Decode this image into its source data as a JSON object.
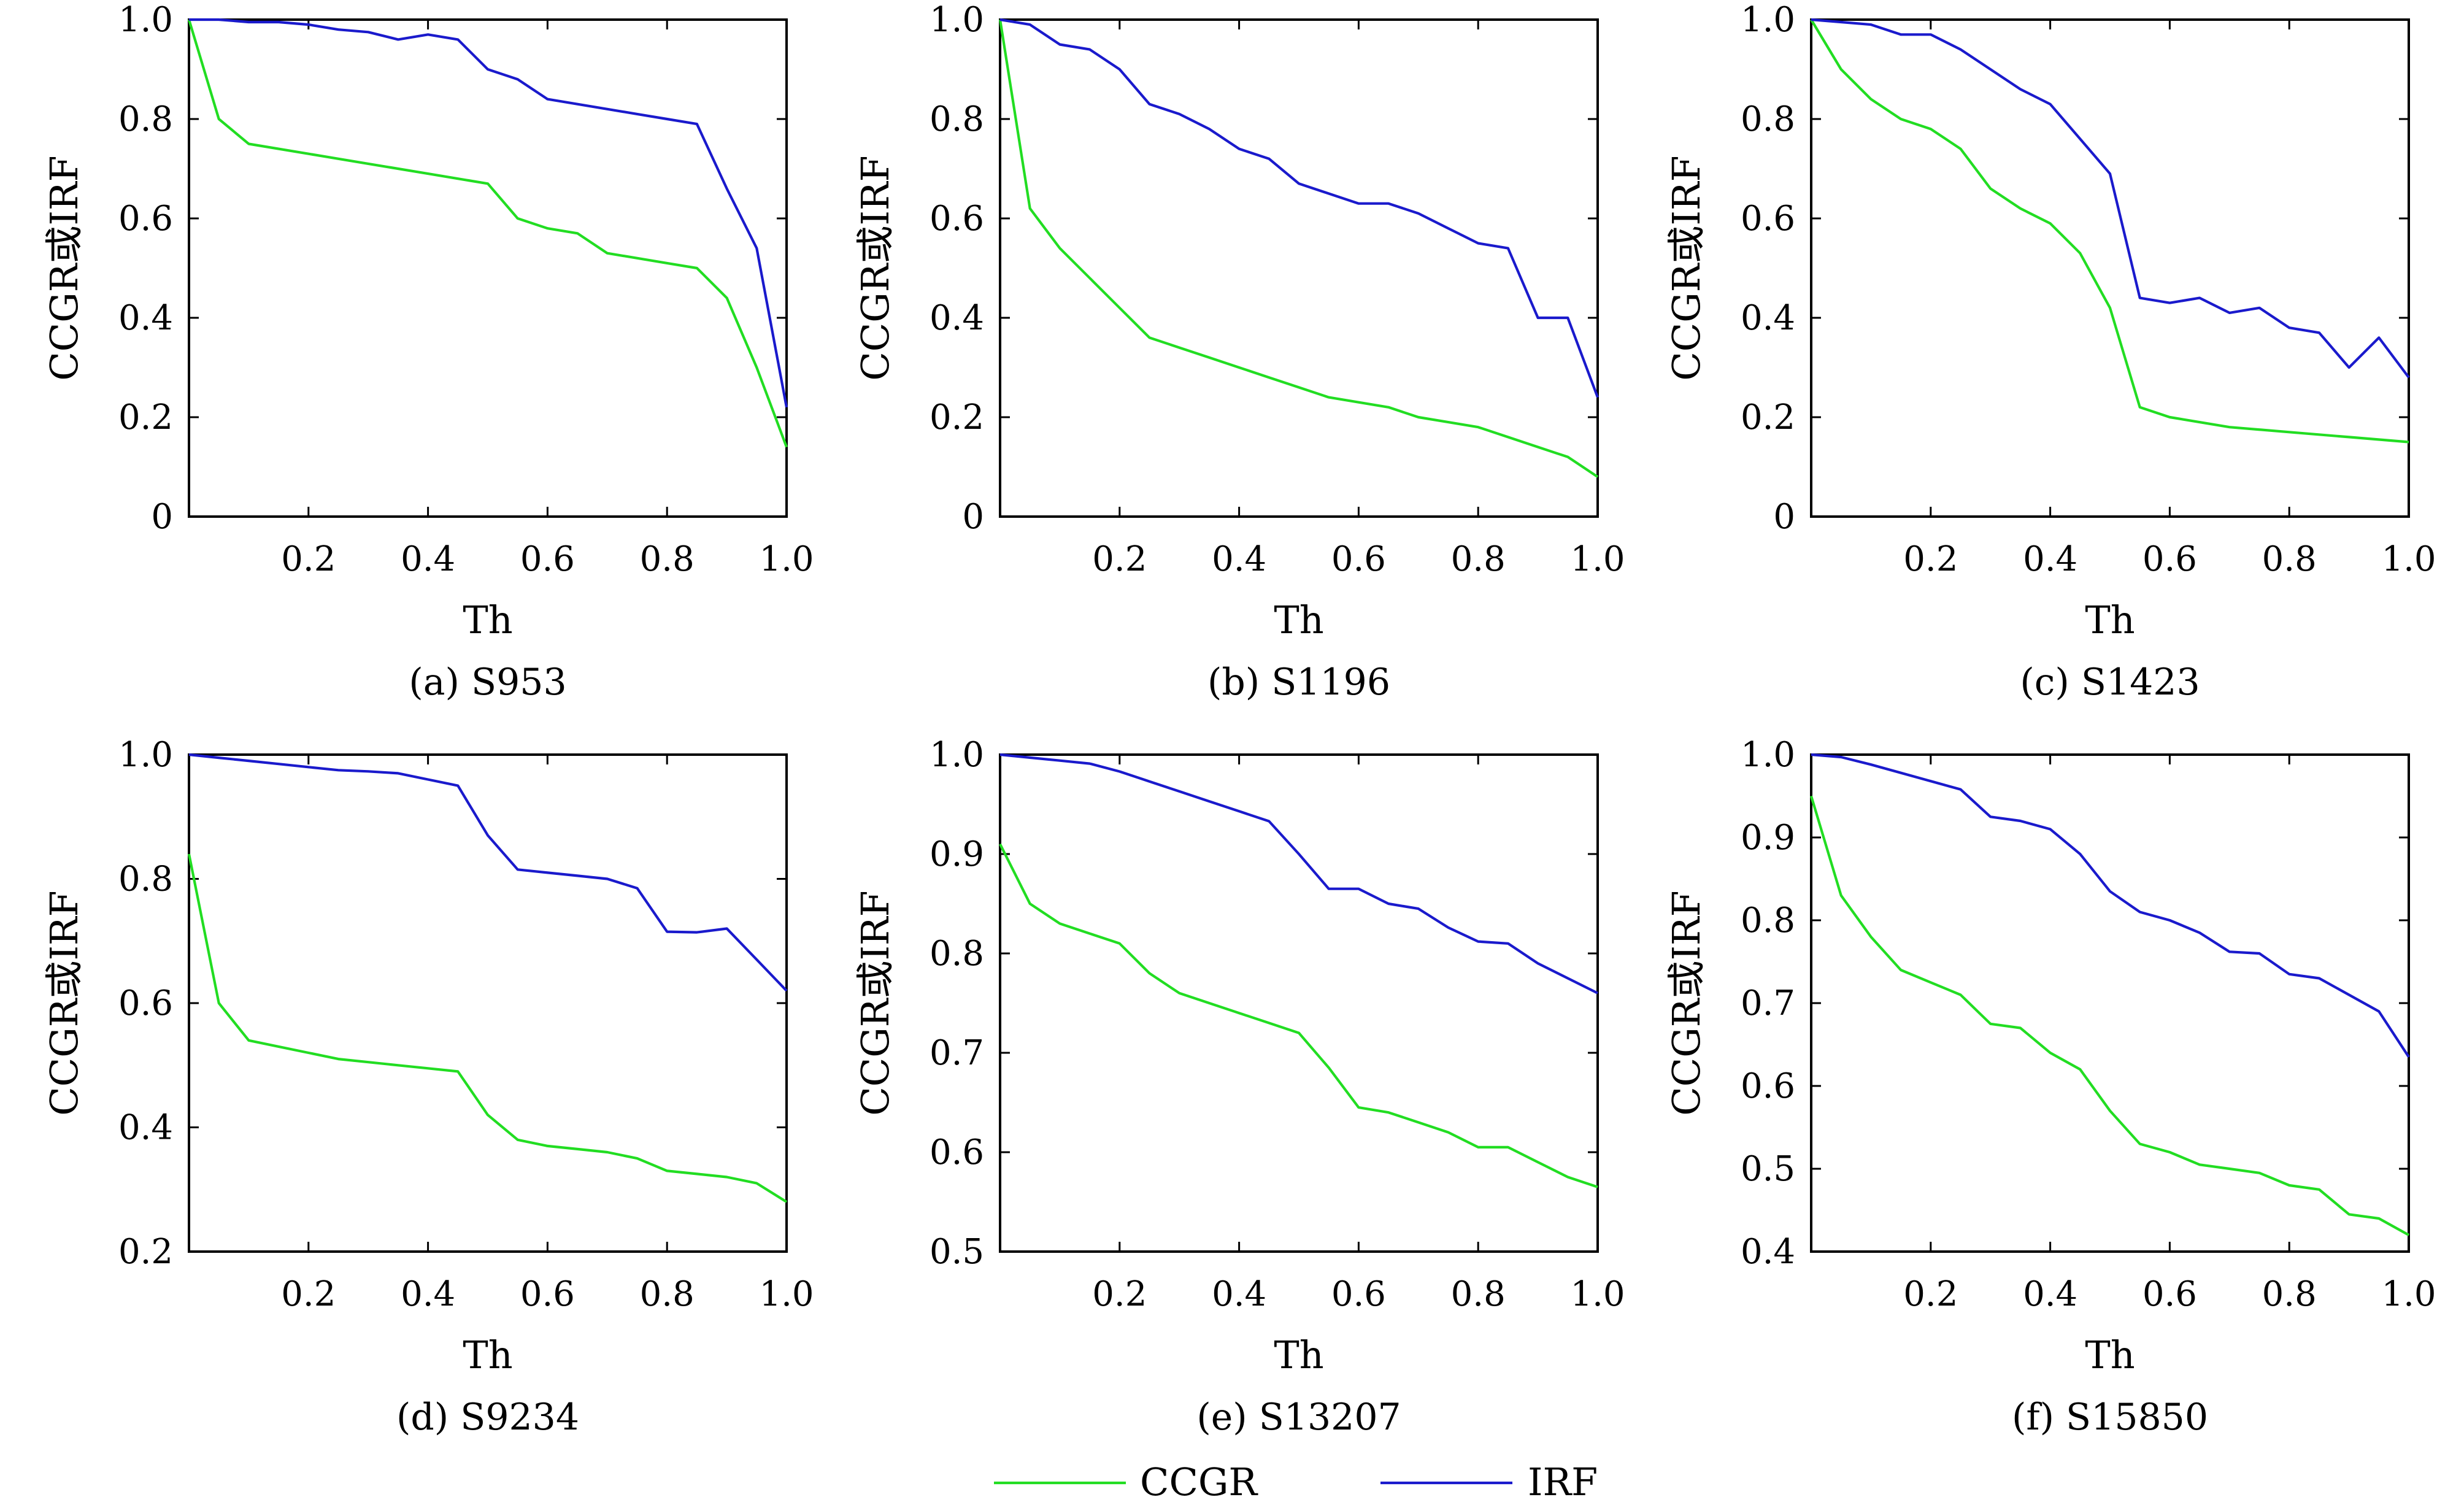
{
  "legend": {
    "items": [
      {
        "label": "CCGR",
        "color": "#22dd22"
      },
      {
        "label": "IRF",
        "color": "#1a1acc"
      }
    ]
  },
  "chart_data": [
    {
      "type": "line",
      "caption": "(a) S953",
      "xlabel": "Th",
      "ylabel": "CCGR或IRF",
      "xlim": [
        0,
        1.0
      ],
      "ylim": [
        0,
        1.0
      ],
      "xticks": [
        "0.2",
        "0.4",
        "0.6",
        "0.8",
        "1.0"
      ],
      "yticks": [
        "0",
        "0.2",
        "0.4",
        "0.6",
        "0.8",
        "1.0"
      ],
      "series": [
        {
          "name": "CCGR",
          "color": "#22dd22",
          "x": [
            0,
            0.05,
            0.1,
            0.2,
            0.3,
            0.4,
            0.5,
            0.55,
            0.6,
            0.65,
            0.7,
            0.8,
            0.85,
            0.9,
            0.95,
            1.0
          ],
          "y": [
            1.0,
            0.8,
            0.75,
            0.73,
            0.71,
            0.69,
            0.67,
            0.6,
            0.58,
            0.57,
            0.53,
            0.51,
            0.5,
            0.44,
            0.3,
            0.14
          ]
        },
        {
          "name": "IRF",
          "color": "#1a1acc",
          "x": [
            0,
            0.05,
            0.1,
            0.15,
            0.2,
            0.25,
            0.3,
            0.35,
            0.4,
            0.45,
            0.5,
            0.55,
            0.6,
            0.65,
            0.7,
            0.75,
            0.8,
            0.85,
            0.9,
            0.95,
            1.0
          ],
          "y": [
            1.0,
            1.0,
            0.995,
            0.995,
            0.99,
            0.98,
            0.975,
            0.96,
            0.97,
            0.96,
            0.9,
            0.88,
            0.84,
            0.83,
            0.82,
            0.81,
            0.8,
            0.79,
            0.66,
            0.54,
            0.22
          ]
        }
      ]
    },
    {
      "type": "line",
      "caption": "(b) S1196",
      "xlabel": "Th",
      "ylabel": "CCGR或IRF",
      "xlim": [
        0,
        1.0
      ],
      "ylim": [
        0,
        1.0
      ],
      "xticks": [
        "0.2",
        "0.4",
        "0.6",
        "0.8",
        "1.0"
      ],
      "yticks": [
        "0",
        "0.2",
        "0.4",
        "0.6",
        "0.8",
        "1.0"
      ],
      "series": [
        {
          "name": "CCGR",
          "color": "#22dd22",
          "x": [
            0,
            0.05,
            0.1,
            0.15,
            0.2,
            0.25,
            0.3,
            0.35,
            0.4,
            0.45,
            0.5,
            0.55,
            0.6,
            0.65,
            0.7,
            0.75,
            0.8,
            0.85,
            0.9,
            0.95,
            1.0
          ],
          "y": [
            1.0,
            0.62,
            0.54,
            0.48,
            0.42,
            0.36,
            0.34,
            0.32,
            0.3,
            0.28,
            0.26,
            0.24,
            0.23,
            0.22,
            0.2,
            0.19,
            0.18,
            0.16,
            0.14,
            0.12,
            0.08
          ]
        },
        {
          "name": "IRF",
          "color": "#1a1acc",
          "x": [
            0,
            0.05,
            0.1,
            0.15,
            0.2,
            0.25,
            0.3,
            0.35,
            0.4,
            0.45,
            0.5,
            0.55,
            0.6,
            0.65,
            0.7,
            0.75,
            0.8,
            0.85,
            0.9,
            0.95,
            1.0
          ],
          "y": [
            1.0,
            0.99,
            0.95,
            0.94,
            0.9,
            0.83,
            0.81,
            0.78,
            0.74,
            0.72,
            0.67,
            0.65,
            0.63,
            0.63,
            0.61,
            0.58,
            0.55,
            0.54,
            0.4,
            0.4,
            0.24
          ]
        }
      ]
    },
    {
      "type": "line",
      "caption": "(c) S1423",
      "xlabel": "Th",
      "ylabel": "CCGR或IRF",
      "xlim": [
        0,
        1.0
      ],
      "ylim": [
        0,
        1.0
      ],
      "xticks": [
        "0.2",
        "0.4",
        "0.6",
        "0.8",
        "1.0"
      ],
      "yticks": [
        "0",
        "0.2",
        "0.4",
        "0.6",
        "0.8",
        "1.0"
      ],
      "series": [
        {
          "name": "CCGR",
          "color": "#22dd22",
          "x": [
            0,
            0.05,
            0.1,
            0.15,
            0.2,
            0.25,
            0.3,
            0.35,
            0.4,
            0.45,
            0.5,
            0.55,
            0.6,
            0.7,
            0.8,
            0.9,
            1.0
          ],
          "y": [
            1.0,
            0.9,
            0.84,
            0.8,
            0.78,
            0.74,
            0.66,
            0.62,
            0.59,
            0.53,
            0.42,
            0.22,
            0.2,
            0.18,
            0.17,
            0.16,
            0.15
          ]
        },
        {
          "name": "IRF",
          "color": "#1a1acc",
          "x": [
            0,
            0.05,
            0.1,
            0.15,
            0.2,
            0.25,
            0.3,
            0.35,
            0.4,
            0.45,
            0.5,
            0.55,
            0.6,
            0.65,
            0.7,
            0.75,
            0.8,
            0.85,
            0.9,
            0.95,
            1.0
          ],
          "y": [
            1.0,
            0.995,
            0.99,
            0.97,
            0.97,
            0.94,
            0.9,
            0.86,
            0.83,
            0.76,
            0.69,
            0.44,
            0.43,
            0.44,
            0.41,
            0.42,
            0.38,
            0.37,
            0.3,
            0.36,
            0.28
          ]
        }
      ]
    },
    {
      "type": "line",
      "caption": "(d) S9234",
      "xlabel": "Th",
      "ylabel": "CCGR或IRF",
      "xlim": [
        0,
        1.0
      ],
      "ylim": [
        0.2,
        1.0
      ],
      "xticks": [
        "0.2",
        "0.4",
        "0.6",
        "0.8",
        "1.0"
      ],
      "yticks": [
        "0.2",
        "0.4",
        "0.6",
        "0.8",
        "1.0"
      ],
      "series": [
        {
          "name": "CCGR",
          "color": "#22dd22",
          "x": [
            0,
            0.05,
            0.1,
            0.15,
            0.2,
            0.25,
            0.3,
            0.35,
            0.4,
            0.45,
            0.5,
            0.55,
            0.6,
            0.65,
            0.7,
            0.75,
            0.8,
            0.85,
            0.9,
            0.95,
            1.0
          ],
          "y": [
            0.84,
            0.6,
            0.54,
            0.53,
            0.52,
            0.51,
            0.505,
            0.5,
            0.495,
            0.49,
            0.42,
            0.38,
            0.37,
            0.365,
            0.36,
            0.35,
            0.33,
            0.325,
            0.32,
            0.31,
            0.28
          ]
        },
        {
          "name": "IRF",
          "color": "#1a1acc",
          "x": [
            0,
            0.05,
            0.1,
            0.15,
            0.2,
            0.25,
            0.3,
            0.35,
            0.4,
            0.45,
            0.5,
            0.55,
            0.6,
            0.65,
            0.7,
            0.75,
            0.8,
            0.85,
            0.9,
            0.95,
            1.0
          ],
          "y": [
            1.0,
            0.995,
            0.99,
            0.985,
            0.98,
            0.975,
            0.973,
            0.97,
            0.96,
            0.95,
            0.87,
            0.815,
            0.81,
            0.805,
            0.8,
            0.785,
            0.715,
            0.714,
            0.72,
            0.67,
            0.62
          ]
        }
      ]
    },
    {
      "type": "line",
      "caption": "(e) S13207",
      "xlabel": "Th",
      "ylabel": "CCGR或IRF",
      "xlim": [
        0,
        1.0
      ],
      "ylim": [
        0.5,
        1.0
      ],
      "xticks": [
        "0.2",
        "0.4",
        "0.6",
        "0.8",
        "1.0"
      ],
      "yticks": [
        "0.5",
        "0.6",
        "0.7",
        "0.8",
        "0.9",
        "1.0"
      ],
      "series": [
        {
          "name": "CCGR",
          "color": "#22dd22",
          "x": [
            0,
            0.05,
            0.1,
            0.15,
            0.2,
            0.25,
            0.3,
            0.35,
            0.4,
            0.45,
            0.5,
            0.55,
            0.6,
            0.65,
            0.7,
            0.75,
            0.8,
            0.85,
            0.9,
            0.95,
            1.0
          ],
          "y": [
            0.91,
            0.85,
            0.83,
            0.82,
            0.81,
            0.78,
            0.76,
            0.75,
            0.74,
            0.73,
            0.72,
            0.685,
            0.645,
            0.64,
            0.63,
            0.62,
            0.605,
            0.605,
            0.59,
            0.575,
            0.565
          ]
        },
        {
          "name": "IRF",
          "color": "#1a1acc",
          "x": [
            0,
            0.05,
            0.1,
            0.15,
            0.2,
            0.25,
            0.3,
            0.35,
            0.4,
            0.45,
            0.5,
            0.55,
            0.6,
            0.65,
            0.7,
            0.75,
            0.8,
            0.85,
            0.9,
            0.95,
            1.0
          ],
          "y": [
            1.0,
            0.997,
            0.994,
            0.991,
            0.983,
            0.973,
            0.963,
            0.953,
            0.943,
            0.933,
            0.9,
            0.865,
            0.865,
            0.85,
            0.845,
            0.826,
            0.812,
            0.81,
            0.79,
            0.775,
            0.76
          ]
        }
      ]
    },
    {
      "type": "line",
      "caption": "(f) S15850",
      "xlabel": "Th",
      "ylabel": "CCGR或IRF",
      "xlim": [
        0,
        1.0
      ],
      "ylim": [
        0.4,
        1.0
      ],
      "xticks": [
        "0.2",
        "0.4",
        "0.6",
        "0.8",
        "1.0"
      ],
      "yticks": [
        "0.4",
        "0.5",
        "0.6",
        "0.7",
        "0.8",
        "0.9",
        "1.0"
      ],
      "series": [
        {
          "name": "CCGR",
          "color": "#22dd22",
          "x": [
            0,
            0.05,
            0.1,
            0.15,
            0.2,
            0.25,
            0.3,
            0.35,
            0.4,
            0.45,
            0.5,
            0.55,
            0.6,
            0.65,
            0.7,
            0.75,
            0.8,
            0.85,
            0.9,
            0.95,
            1.0
          ],
          "y": [
            0.95,
            0.83,
            0.78,
            0.74,
            0.725,
            0.71,
            0.675,
            0.67,
            0.64,
            0.62,
            0.57,
            0.53,
            0.52,
            0.505,
            0.5,
            0.495,
            0.48,
            0.475,
            0.445,
            0.44,
            0.42
          ]
        },
        {
          "name": "IRF",
          "color": "#1a1acc",
          "x": [
            0,
            0.05,
            0.1,
            0.15,
            0.2,
            0.25,
            0.3,
            0.35,
            0.4,
            0.45,
            0.5,
            0.55,
            0.6,
            0.65,
            0.7,
            0.75,
            0.8,
            0.85,
            0.9,
            0.95,
            1.0
          ],
          "y": [
            1.0,
            0.997,
            0.988,
            0.978,
            0.968,
            0.958,
            0.925,
            0.92,
            0.91,
            0.88,
            0.835,
            0.81,
            0.8,
            0.785,
            0.762,
            0.76,
            0.735,
            0.73,
            0.71,
            0.69,
            0.635
          ]
        }
      ]
    }
  ]
}
